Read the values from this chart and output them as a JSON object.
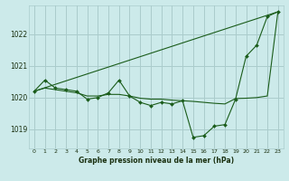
{
  "title": "Graphe pression niveau de la mer (hPa)",
  "background_color": "#cceaea",
  "grid_color": "#aacccc",
  "line_color": "#1a5c1a",
  "marker_color": "#1a5c1a",
  "xlim": [
    -0.5,
    23.5
  ],
  "ylim": [
    1018.4,
    1022.9
  ],
  "yticks": [
    1019,
    1020,
    1021,
    1022
  ],
  "xticks": [
    0,
    1,
    2,
    3,
    4,
    5,
    6,
    7,
    8,
    9,
    10,
    11,
    12,
    13,
    14,
    15,
    16,
    17,
    18,
    19,
    20,
    21,
    22,
    23
  ],
  "series1": [
    1020.2,
    1020.55,
    1020.3,
    1020.25,
    1020.2,
    1019.95,
    1020.0,
    1020.15,
    1020.55,
    1020.05,
    1019.85,
    1019.75,
    1019.85,
    1019.8,
    1019.9,
    1018.75,
    1018.8,
    1019.1,
    1019.15,
    1019.95,
    1021.3,
    1021.65,
    1022.55,
    1022.7
  ],
  "series2": [
    1020.2,
    1020.3,
    1020.25,
    1020.2,
    1020.15,
    1020.05,
    1020.05,
    1020.1,
    1020.1,
    1020.05,
    1019.98,
    1019.95,
    1019.95,
    1019.92,
    1019.9,
    1019.88,
    1019.85,
    1019.82,
    1019.8,
    1019.97,
    1019.98,
    1020.0,
    1020.05,
    1022.7
  ],
  "trend_x": [
    0,
    23
  ],
  "trend_y": [
    1020.2,
    1022.7
  ]
}
